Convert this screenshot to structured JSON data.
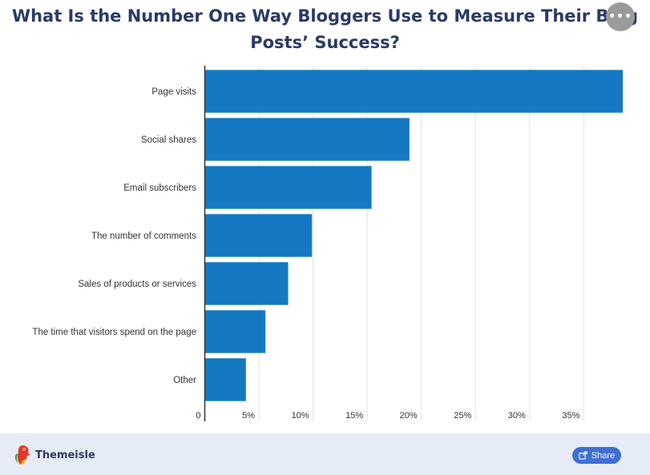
{
  "header": {
    "title_line1": "What Is the Number One Way Bloggers Use to Measure Their Blog",
    "title_line2": "Posts’ Success?",
    "more_icon": "more-horizontal-icon",
    "more_label": "•••"
  },
  "chart_data": {
    "type": "bar",
    "orientation": "horizontal",
    "categories": [
      "Page visits",
      "Social shares",
      "Email subscribers",
      "The number of comments",
      "Sales of products or services",
      "The time that visitors spend on the page",
      "Other"
    ],
    "values": [
      38.6,
      18.9,
      15.4,
      9.9,
      7.7,
      5.6,
      3.8
    ],
    "x_ticks": [
      "0",
      "5%",
      "10%",
      "15%",
      "20%",
      "25%",
      "30%",
      "35%"
    ],
    "x_tick_values": [
      0,
      5,
      10,
      15,
      20,
      25,
      30,
      35
    ],
    "xlim": [
      0,
      38.6
    ],
    "grid": true,
    "bar_color": "#1479c2"
  },
  "footer": {
    "brand_name": "Themeisle",
    "brand_icon": "parrot-logo-icon",
    "share_label": "Share",
    "share_icon": "share-icon",
    "share_color": "#3f6fd1"
  }
}
